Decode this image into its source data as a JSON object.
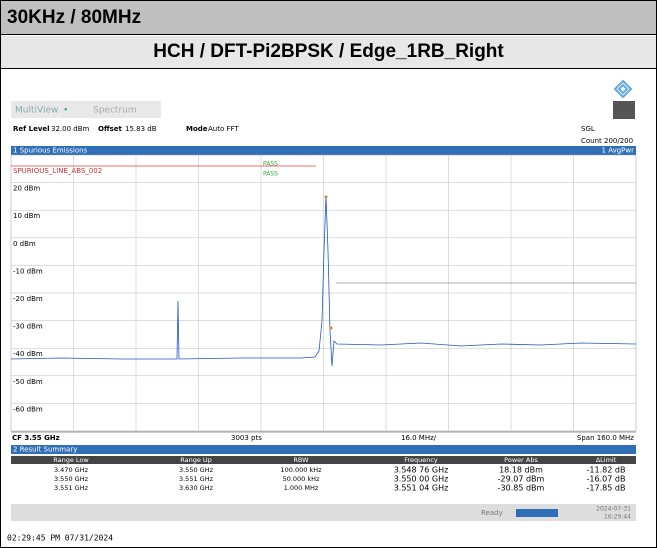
{
  "header": {
    "title": "30KHz / 80MHz",
    "subtitle": "HCH / DFT-Pi2BPSK / Edge_1RB_Right"
  },
  "screen": {
    "tabs": [
      "MultiView",
      "Spectrum"
    ],
    "ref_level_label": "Ref Level",
    "ref_level": "32.00 dBm",
    "offset_label": "Offset",
    "offset": "15.83 dB",
    "mode_label": "Mode",
    "mode": "Auto FFT",
    "sweep": "SGL",
    "count": "Count 200/200",
    "window_title": "1 Spurious Emissions",
    "trace_label": "1 AvgPwr",
    "limit_line": "SPURIOUS_LINE_ABS_002",
    "pass": [
      "PASS",
      "PASS"
    ],
    "y_labels": [
      "20 dBm",
      "10 dBm",
      "0 dBm",
      "-10 dBm",
      "-20 dBm",
      "-30 dBm",
      "-40 dBm",
      "-50 dBm",
      "-60 dBm"
    ],
    "footer": {
      "cf": "CF 3.55 GHz",
      "points": "3003 pts",
      "div": "16.0 MHz/",
      "span": "Span 160.0 MHz"
    },
    "summary": {
      "title": "2 Result Summary",
      "columns": [
        "Range Low",
        "Range Up",
        "RBW",
        "Frequency",
        "Power Abs",
        "ΔLimit"
      ],
      "rows": [
        [
          "3.470 GHz",
          "3.550 GHz",
          "100.000 kHz",
          "3.548 76 GHz",
          "18.18 dBm",
          "-11.82 dB"
        ],
        [
          "3.550 GHz",
          "3.551 GHz",
          "50.000 kHz",
          "3.550 00 GHz",
          "-29.07 dBm",
          "-16.07 dB"
        ],
        [
          "3.551 GHz",
          "3.630 GHz",
          "1.000 MHz",
          "3.551 04 GHz",
          "-30.85 dBm",
          "-17.85 dB"
        ]
      ]
    },
    "status": "Ready",
    "date": "2024-07-31",
    "time": "16:29:44"
  },
  "timestamp": "02:29:45 PM  07/31/2024"
}
